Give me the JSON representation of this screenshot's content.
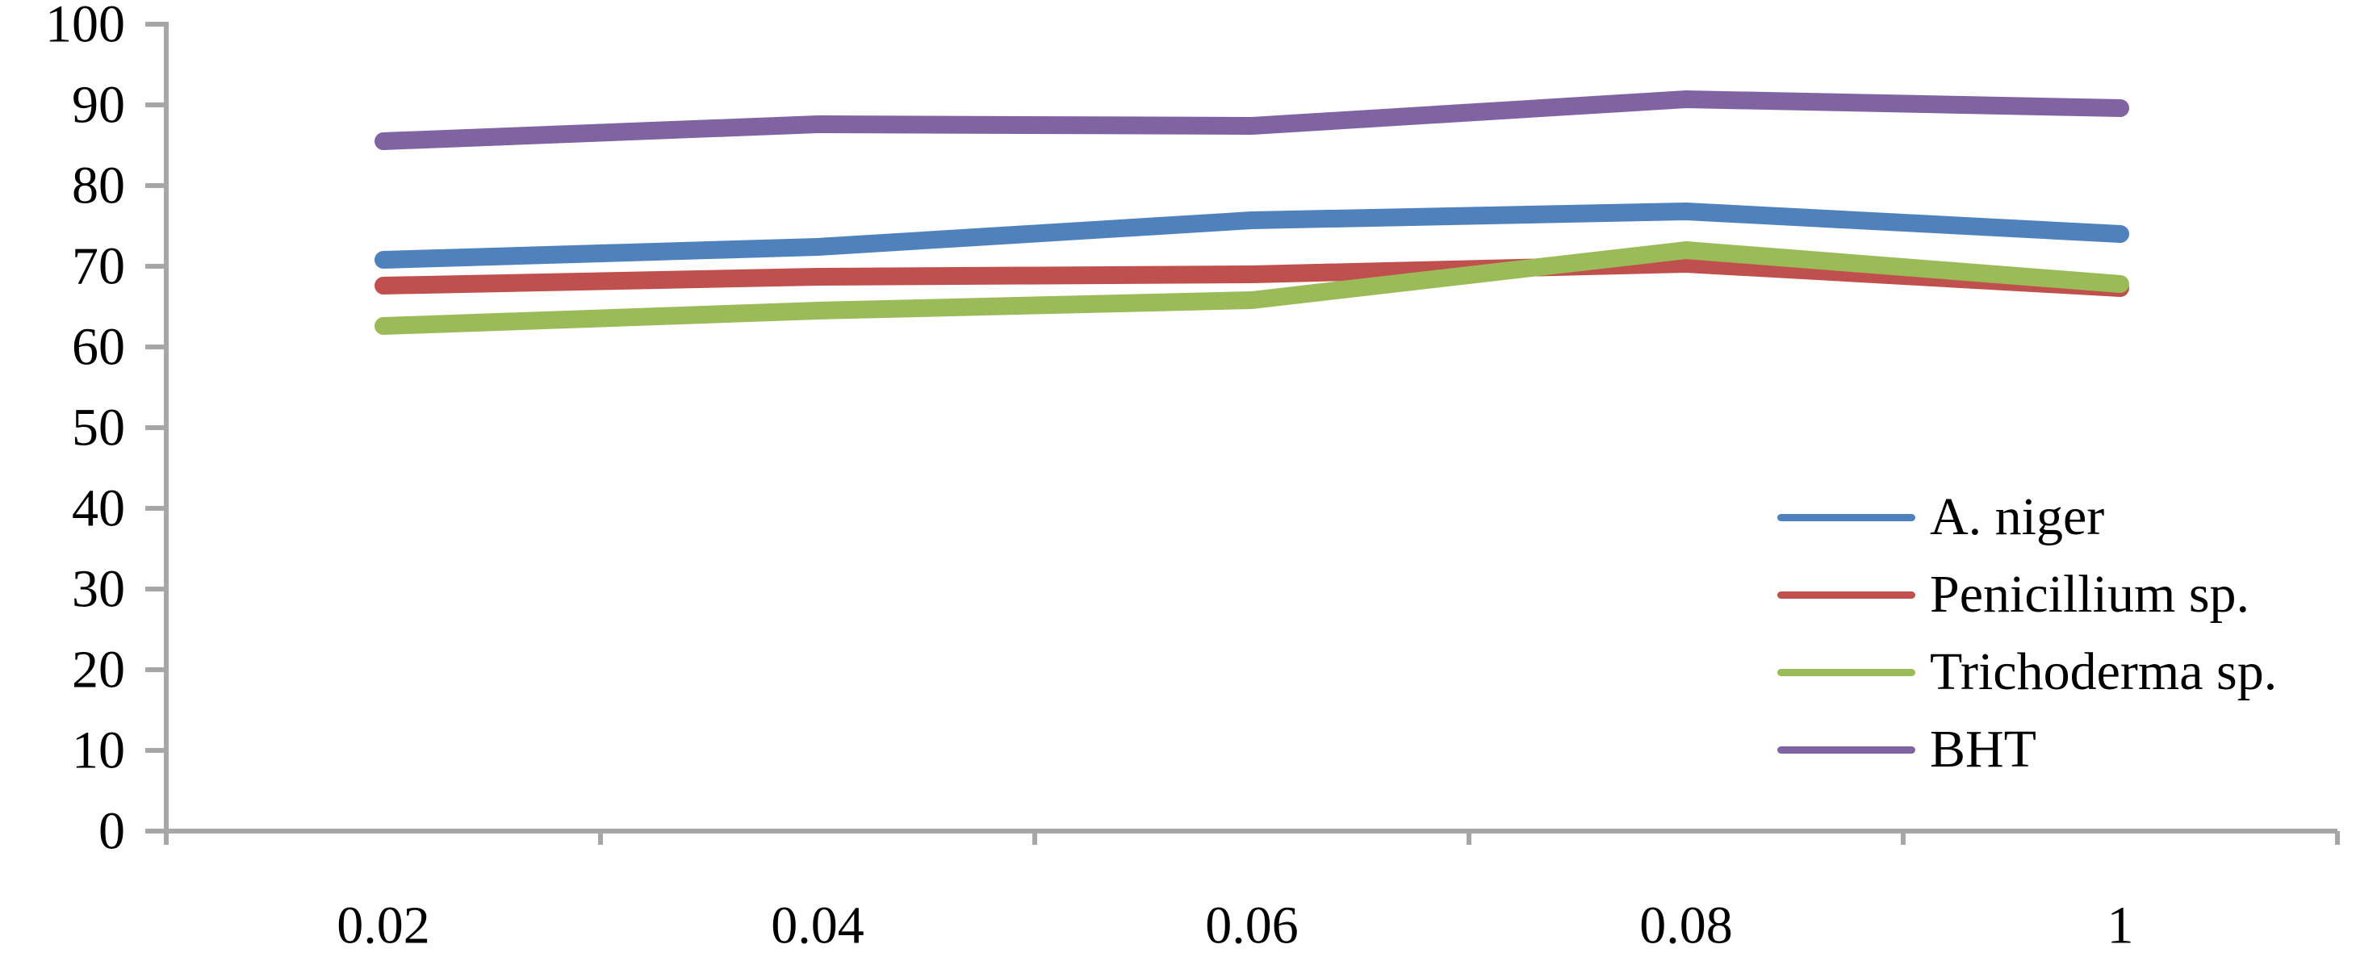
{
  "chart_data": {
    "type": "line",
    "title": "",
    "xlabel": "",
    "ylabel": "",
    "x_axis_type": "category",
    "categories": [
      "0.02",
      "0.04",
      "0.06",
      "0.08",
      "1"
    ],
    "series": [
      {
        "name": "A. niger",
        "color": "#4F81BD",
        "values": [
          70.8,
          72.4,
          75.7,
          76.8,
          74.0
        ]
      },
      {
        "name": "Penicillium sp.",
        "color": "#C0504D",
        "values": [
          67.6,
          68.7,
          69.0,
          70.3,
          67.3
        ]
      },
      {
        "name": "Trichoderma sp.",
        "color": "#9BBB59",
        "values": [
          62.6,
          64.5,
          65.8,
          72.0,
          67.8
        ]
      },
      {
        "name": "BHT",
        "color": "#8064A2",
        "values": [
          85.5,
          87.6,
          87.4,
          90.7,
          89.6
        ]
      }
    ],
    "ylim": [
      0,
      100
    ],
    "yticks": [
      0,
      10,
      20,
      30,
      40,
      50,
      60,
      70,
      80,
      90,
      100
    ],
    "ytick_labels": [
      "0",
      "10",
      "20",
      "30",
      "40",
      "50",
      "60",
      "70",
      "80",
      "90",
      "100"
    ],
    "grid": false,
    "legend_position": "right-middle",
    "axis_color": "#A6A6A6",
    "text_color": "#000000",
    "background_color": "#FFFFFF"
  }
}
